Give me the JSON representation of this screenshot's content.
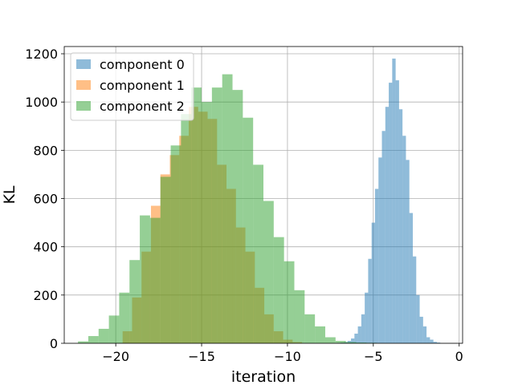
{
  "chart_data": {
    "type": "histogram",
    "xlabel": "iteration",
    "ylabel": "KL",
    "xlim": [
      -23,
      0.2
    ],
    "ylim": [
      0,
      1230
    ],
    "xticks": [
      -20,
      -15,
      -10,
      -5,
      0
    ],
    "xtick_labels": [
      "−20",
      "−15",
      "−10",
      "−5",
      "0"
    ],
    "yticks": [
      0,
      200,
      400,
      600,
      800,
      1000,
      1200
    ],
    "ytick_labels": [
      "0",
      "200",
      "400",
      "600",
      "800",
      "1000",
      "1200"
    ],
    "grid": true,
    "legend_position": "top-left",
    "series": [
      {
        "name": "component 0",
        "color": "#1f77b4",
        "alpha": 0.5,
        "bin_start": -7.1,
        "bin_width": 0.2,
        "counts": [
          2,
          3,
          5,
          10,
          20,
          40,
          70,
          120,
          210,
          350,
          500,
          640,
          770,
          880,
          980,
          1080,
          1180,
          1090,
          970,
          860,
          760,
          540,
          360,
          200,
          110,
          70,
          25,
          15,
          6,
          3
        ]
      },
      {
        "name": "component 1",
        "color": "#ff7f0e",
        "alpha": 0.5,
        "bin_start": -19.6,
        "bin_width": 0.55,
        "counts": [
          50,
          190,
          380,
          570,
          700,
          780,
          860,
          980,
          960,
          930,
          740,
          640,
          480,
          380,
          230,
          120,
          50,
          15,
          5
        ]
      },
      {
        "name": "component 2",
        "color": "#2ca02c",
        "alpha": 0.5,
        "bin_start": -22.2,
        "bin_width": 0.6,
        "counts": [
          8,
          30,
          60,
          115,
          210,
          345,
          530,
          520,
          690,
          820,
          950,
          1060,
          1000,
          1060,
          1115,
          1050,
          935,
          740,
          590,
          440,
          340,
          220,
          120,
          70,
          25,
          10,
          5,
          3,
          2
        ]
      }
    ]
  }
}
